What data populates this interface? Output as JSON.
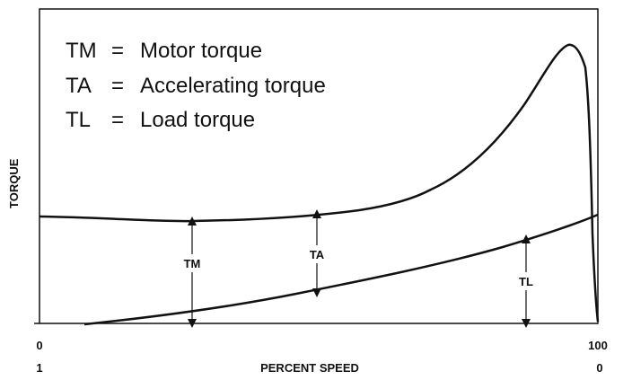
{
  "legend": {
    "rows": [
      {
        "abbr": "TM",
        "eq": "=",
        "text": "Motor torque"
      },
      {
        "abbr": "TA",
        "eq": "=",
        "text": "Accelerating torque"
      },
      {
        "abbr": "TL",
        "eq": "=",
        "text": "Load torque"
      }
    ]
  },
  "axes": {
    "y_label": "TORQUE",
    "x_label": "PERCENT SPEED",
    "x_speed_ticks": [
      "0",
      "100"
    ],
    "x_slip_ticks": [
      "1",
      "0"
    ]
  },
  "annotations": {
    "tm": "TM",
    "ta": "TA",
    "tl": "TL"
  },
  "curves": {
    "motor_torque": "Motor torque",
    "load_torque": "Load torque"
  },
  "colors": {
    "line": "#111111",
    "background": "#ffffff"
  }
}
